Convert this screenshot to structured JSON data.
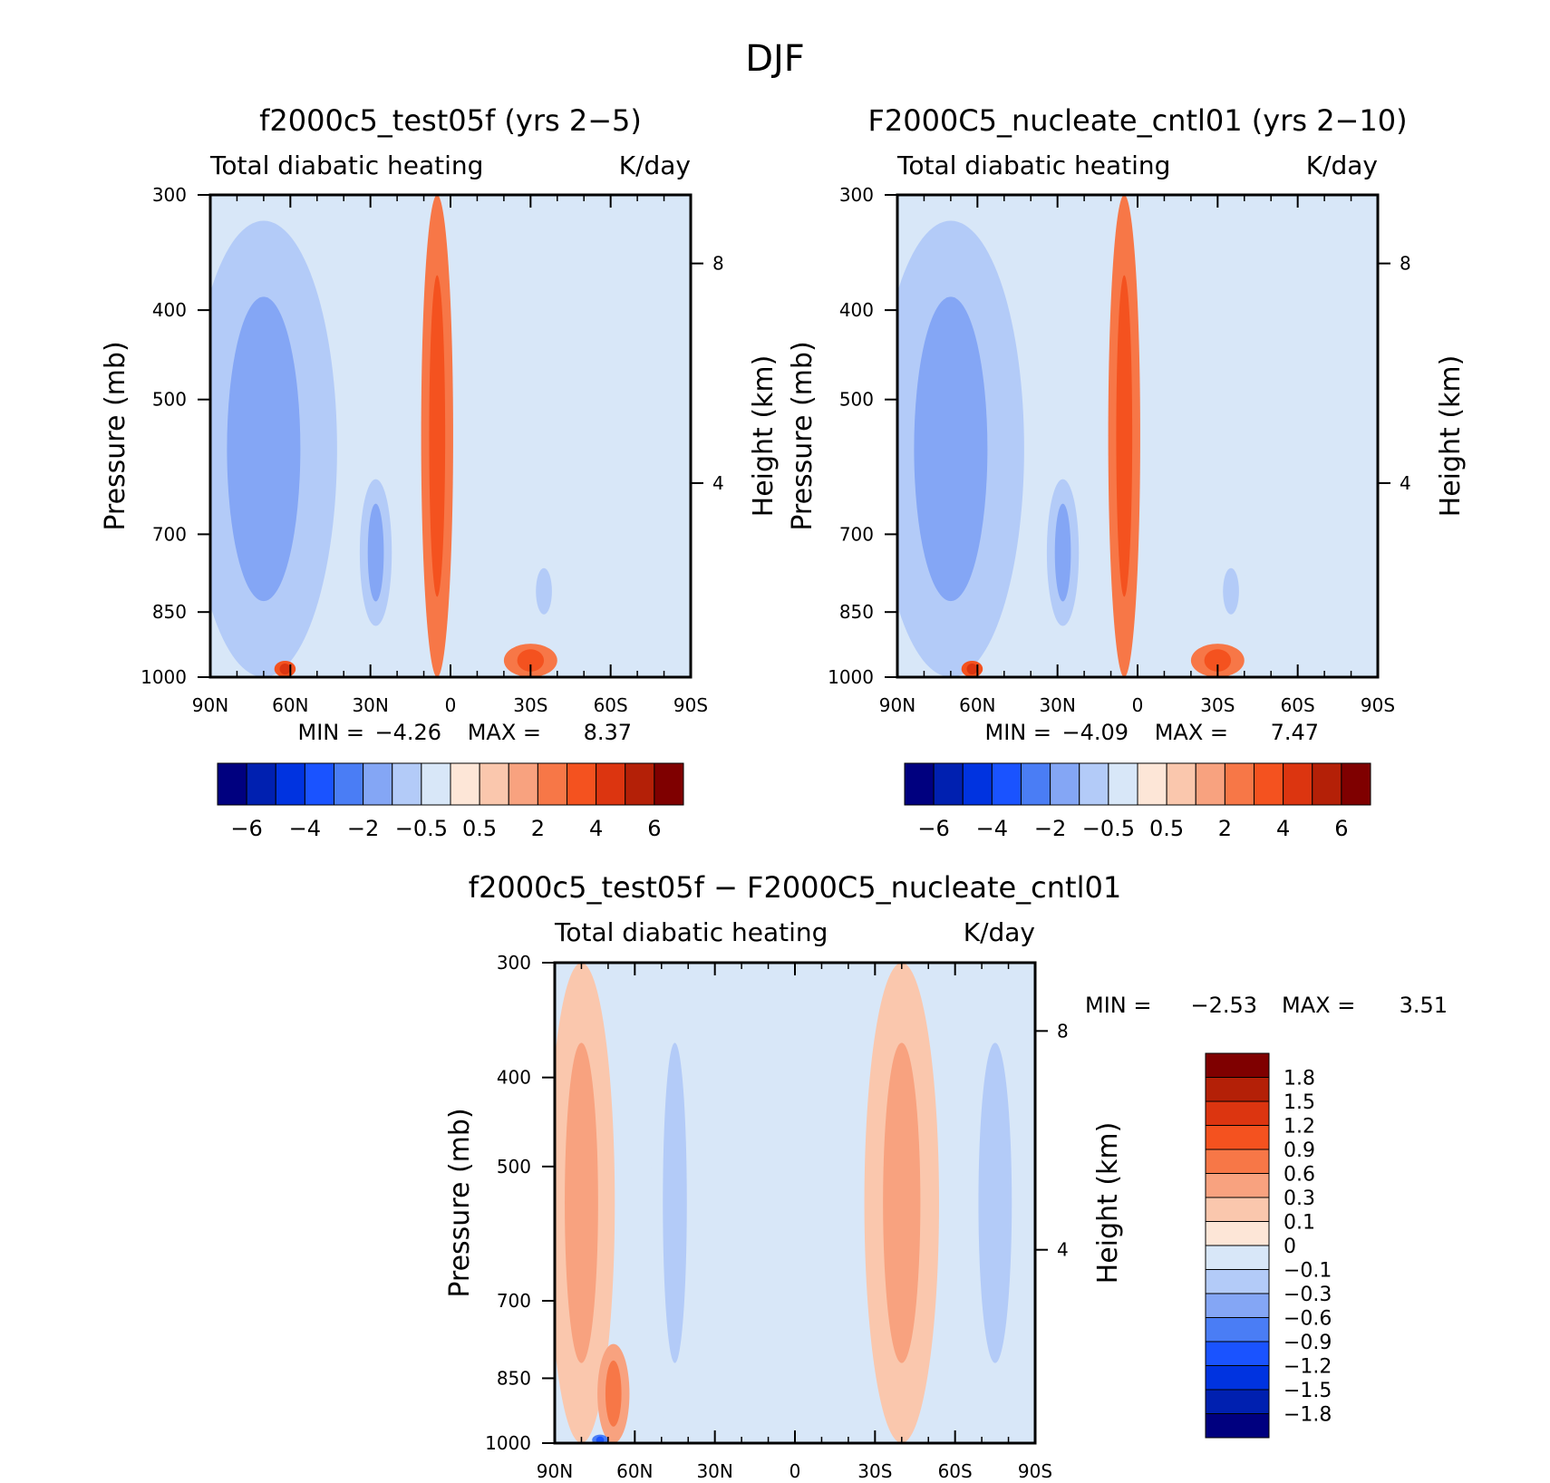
{
  "figure": {
    "title": "DJF"
  },
  "chart_data": [
    {
      "type": "contour",
      "panel": "model",
      "title": "f2000c5_test05f (yrs 2−5)",
      "left_label": "Total diabatic heating",
      "right_label": "K/day",
      "ylabel": "Pressure (mb)",
      "ylabel_right": "Height (km)",
      "x_ticks": [
        "90N",
        "60N",
        "30N",
        "0",
        "30S",
        "60S",
        "90S"
      ],
      "y_ticks": [
        "300",
        "400",
        "500",
        "700",
        "850",
        "1000"
      ],
      "y_ticks_right": [
        "8",
        "4"
      ],
      "xlim": [
        90,
        -90
      ],
      "ylim": [
        1000,
        300
      ],
      "min_label": "MIN =",
      "min_value": "−4.26",
      "max_label": "MAX =",
      "max_value": "8.37",
      "colorbar_labels": [
        "−6",
        "−4",
        "−2",
        "−0.5",
        "0.5",
        "2",
        "4",
        "6"
      ],
      "features": [
        {
          "level": -2,
          "lat": 70,
          "p_top": 320,
          "p_bot": 1000,
          "width": 55,
          "desc": "NH high-latitude cooling"
        },
        {
          "level": -2,
          "lat": 28,
          "p_top": 610,
          "p_bot": 880,
          "width": 12,
          "desc": "subtropical cooling"
        },
        {
          "level": -1,
          "lat": -35,
          "p_top": 740,
          "p_bot": 880,
          "width": 12,
          "desc": "SH subtropical cooling"
        },
        {
          "level": 3,
          "lat": 5,
          "p_top": 300,
          "p_bot": 1000,
          "width": 12,
          "desc": "tropical convective heating"
        },
        {
          "level": 4,
          "lat": 62,
          "p_top": 960,
          "p_bot": 1000,
          "width": 8,
          "desc": "NH surface heating"
        },
        {
          "level": 3,
          "lat": -30,
          "p_top": 920,
          "p_bot": 1000,
          "width": 20,
          "desc": "SH boundary layer heating"
        }
      ]
    },
    {
      "type": "contour",
      "panel": "control",
      "title": "F2000C5_nucleate_cntl01 (yrs 2−10)",
      "left_label": "Total diabatic heating",
      "right_label": "K/day",
      "ylabel": "Pressure (mb)",
      "ylabel_right": "Height (km)",
      "x_ticks": [
        "90N",
        "60N",
        "30N",
        "0",
        "30S",
        "60S",
        "90S"
      ],
      "y_ticks": [
        "300",
        "400",
        "500",
        "700",
        "850",
        "1000"
      ],
      "y_ticks_right": [
        "8",
        "4"
      ],
      "xlim": [
        90,
        -90
      ],
      "ylim": [
        1000,
        300
      ],
      "min_label": "MIN =",
      "min_value": "−4.09",
      "max_label": "MAX =",
      "max_value": "7.47",
      "colorbar_labels": [
        "−6",
        "−4",
        "−2",
        "−0.5",
        "0.5",
        "2",
        "4",
        "6"
      ],
      "features": [
        {
          "level": -2,
          "lat": 70,
          "p_top": 320,
          "p_bot": 1000,
          "width": 55,
          "desc": "NH high-latitude cooling"
        },
        {
          "level": -2,
          "lat": 28,
          "p_top": 610,
          "p_bot": 880,
          "width": 12,
          "desc": "subtropical cooling"
        },
        {
          "level": -1,
          "lat": -35,
          "p_top": 740,
          "p_bot": 880,
          "width": 12,
          "desc": "SH subtropical cooling"
        },
        {
          "level": 3,
          "lat": 5,
          "p_top": 300,
          "p_bot": 1000,
          "width": 12,
          "desc": "tropical convective heating"
        },
        {
          "level": 4,
          "lat": 62,
          "p_top": 960,
          "p_bot": 1000,
          "width": 8,
          "desc": "NH surface heating"
        },
        {
          "level": 3,
          "lat": -30,
          "p_top": 920,
          "p_bot": 1000,
          "width": 20,
          "desc": "SH boundary layer heating"
        }
      ]
    },
    {
      "type": "contour",
      "panel": "difference",
      "title": "f2000c5_test05f − F2000C5_nucleate_cntl01",
      "left_label": "Total diabatic heating",
      "right_label": "K/day",
      "ylabel": "Pressure (mb)",
      "ylabel_right": "Height (km)",
      "x_ticks": [
        "90N",
        "60N",
        "30N",
        "0",
        "30S",
        "60S",
        "90S"
      ],
      "y_ticks": [
        "300",
        "400",
        "500",
        "700",
        "850",
        "1000"
      ],
      "y_ticks_right": [
        "8",
        "4"
      ],
      "xlim": [
        90,
        -90
      ],
      "ylim": [
        1000,
        300
      ],
      "min_label": "MIN =",
      "min_value": "−2.53",
      "max_label": "MAX =",
      "max_value": "3.51",
      "colorbar_labels": [
        "1.8",
        "1.5",
        "1.2",
        "0.9",
        "0.6",
        "0.3",
        "0.1",
        "0",
        "−0.1",
        "−0.3",
        "−0.6",
        "−0.9",
        "−1.2",
        "−1.5",
        "−1.8"
      ],
      "features": [
        {
          "level": 1,
          "lat": 80,
          "p_top": 300,
          "p_bot": 1000,
          "width": 25,
          "desc": "high-latitude positive difference"
        },
        {
          "level": 2,
          "lat": 68,
          "p_top": 780,
          "p_bot": 1000,
          "width": 12,
          "desc": "surface positive difference"
        },
        {
          "level": -1,
          "lat": 45,
          "p_top": 300,
          "p_bot": 1000,
          "width": 18,
          "desc": "mid-latitude negative difference"
        },
        {
          "level": 1,
          "lat": -40,
          "p_top": 300,
          "p_bot": 1000,
          "width": 28,
          "desc": "SH positive difference"
        },
        {
          "level": -1,
          "lat": -75,
          "p_top": 300,
          "p_bot": 1000,
          "width": 25,
          "desc": "SH high-latitude negative difference"
        },
        {
          "level": -4,
          "lat": 73,
          "p_top": 985,
          "p_bot": 1000,
          "width": 6,
          "desc": "surface negative difference"
        }
      ]
    }
  ],
  "colors": {
    "main_palette": [
      "#00007f",
      "#0020b0",
      "#0033e0",
      "#1a53ff",
      "#4a7df5",
      "#84a6f5",
      "#b3cbf8",
      "#d8e7f8",
      "#fde6d7",
      "#fac7ad",
      "#f8a27f",
      "#f77747",
      "#f4521f",
      "#dc3510",
      "#b42007",
      "#7f0000"
    ],
    "diff_palette": [
      "#7f0000",
      "#b42007",
      "#dc3510",
      "#f4521f",
      "#f77747",
      "#f8a27f",
      "#fac7ad",
      "#fde6d7",
      "#d8e7f8",
      "#b3cbf8",
      "#84a6f5",
      "#4a7df5",
      "#1a53ff",
      "#0033e0",
      "#0020b0",
      "#00007f"
    ]
  }
}
